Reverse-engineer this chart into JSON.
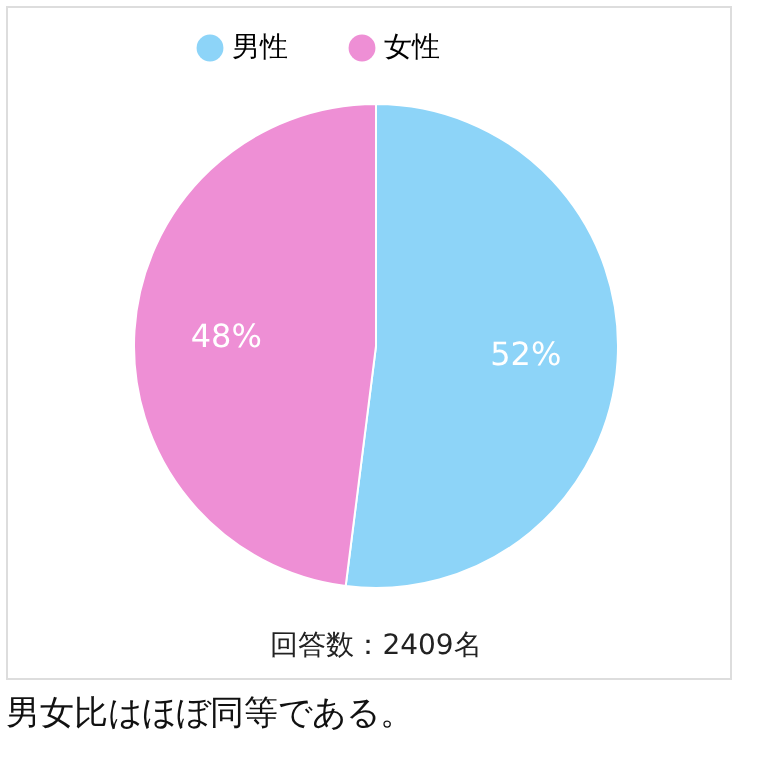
{
  "chart_data": {
    "type": "pie",
    "categories": [
      "男性",
      "女性"
    ],
    "values": [
      52,
      48
    ],
    "colors": [
      "#8dd4f8",
      "#ee8fd5"
    ],
    "value_labels": [
      "52%",
      "48%"
    ],
    "legend": "top",
    "annotations": [
      "回答数：2409名",
      "男女比はほぼ同等である。"
    ]
  }
}
